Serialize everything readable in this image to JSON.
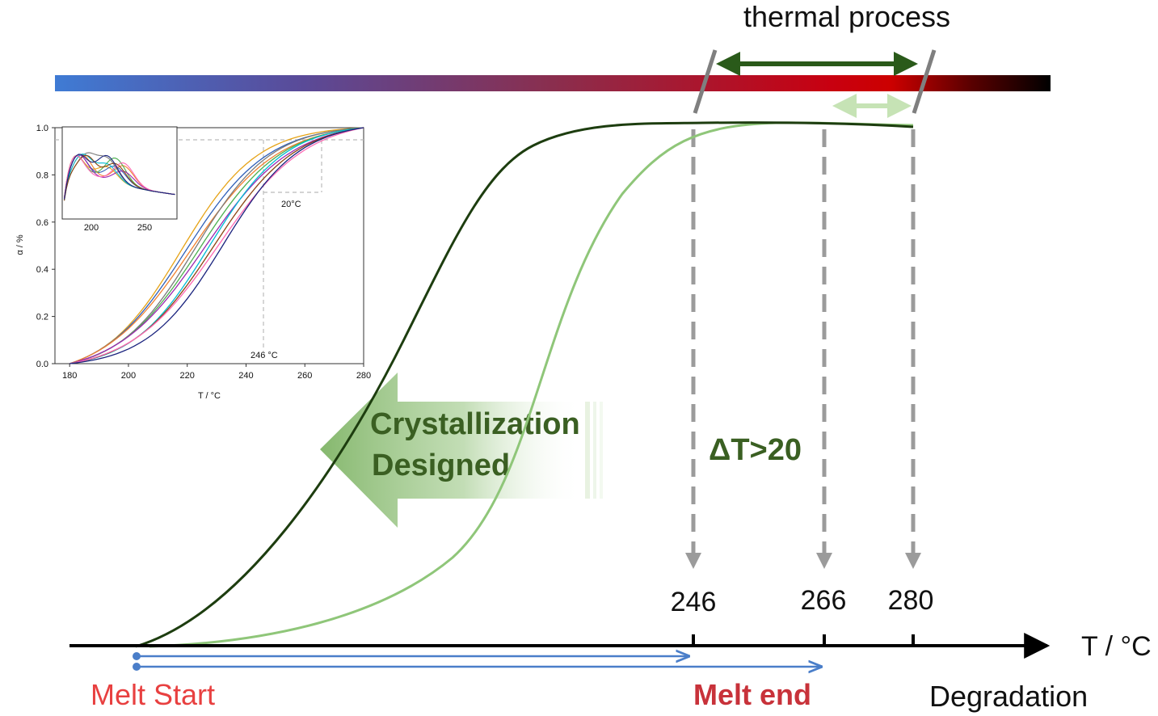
{
  "header": {
    "thermal_process": "thermal process"
  },
  "main": {
    "crystallization_line1": "Crystallization",
    "crystallization_line2": "Designed",
    "delta_t": "ΔT>20",
    "axis_label": "T / °C",
    "melt_start": "Melt Start",
    "melt_end": "Melt end",
    "degradation": "Degradation",
    "markers": [
      {
        "label": "246",
        "value": 246
      },
      {
        "label": "266",
        "value": 266
      },
      {
        "label": "280",
        "value": 280
      }
    ]
  },
  "colors": {
    "dark_green": "#1d3d0f",
    "light_green": "#8fc679",
    "pale_green": "#c6e3b5",
    "blue": "#4a7ec9",
    "red_label": "#e84040",
    "dark_red_label": "#c8323a",
    "gray_dashed": "#9b9b9b",
    "bar_blue": "#3f7bd4",
    "bar_red": "#cc0000",
    "bar_black": "#000000"
  },
  "inset": {
    "ylabel": "α / %",
    "xlabel": "T / °C",
    "x_ticks": [
      "180",
      "200",
      "220",
      "240",
      "260",
      "280"
    ],
    "y_ticks": [
      "0.0",
      "0.2",
      "0.4",
      "0.6",
      "0.8",
      "1.0"
    ],
    "sub_x_ticks": [
      "200",
      "250"
    ],
    "annot_246": "246 °C",
    "annot_20": "20°C"
  },
  "chart_data": {
    "type": "line",
    "xlabel": "T / °C",
    "ylabel": "α / %",
    "xlim": [
      175,
      280
    ],
    "ylim": [
      0,
      1.0
    ],
    "x_ticks": [
      180,
      200,
      220,
      240,
      260,
      280
    ],
    "y_ticks": [
      0.0,
      0.2,
      0.4,
      0.6,
      0.8,
      1.0
    ],
    "series_note_count": 10,
    "colors": [
      "#e6a317",
      "#2e5fb8",
      "#f08030",
      "#7a7a7a",
      "#4caf50",
      "#9c27b0",
      "#00bcd4",
      "#8b4513",
      "#ff69b4",
      "#1a237e"
    ],
    "annotations": [
      {
        "text": "246 °C",
        "x": 246
      },
      {
        "text": "20°C",
        "x_from": 246,
        "x_to": 266,
        "y": 0.95
      }
    ]
  }
}
